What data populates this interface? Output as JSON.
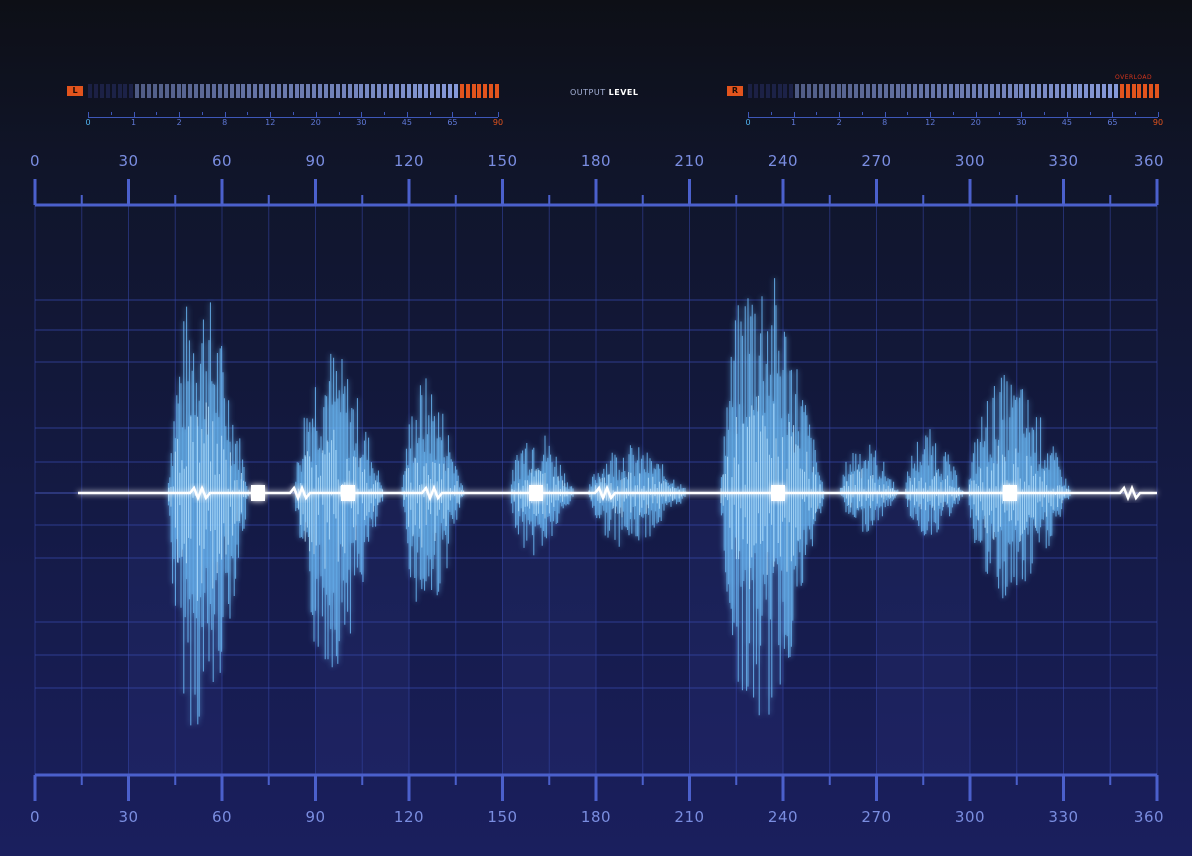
{
  "header": {
    "output_label_prefix": "OUTPUT",
    "output_label_strong": "LEVEL",
    "overload_label": "OVERLOAD"
  },
  "left_meter": {
    "channel": "L",
    "scale": [
      "0",
      "1",
      "2",
      "8",
      "12",
      "20",
      "30",
      "45",
      "65",
      "90"
    ]
  },
  "right_meter": {
    "channel": "R",
    "scale": [
      "0",
      "1",
      "2",
      "8",
      "12",
      "20",
      "30",
      "45",
      "65",
      "90"
    ]
  },
  "axis": {
    "labels": [
      "0",
      "30",
      "60",
      "90",
      "120",
      "150",
      "180",
      "210",
      "240",
      "270",
      "300",
      "330",
      "360"
    ]
  },
  "colors": {
    "background": "#0d0f16",
    "meter_on": "#8fa3e6",
    "meter_off": "#2b3370",
    "meter_peak": "#e2541d",
    "grid": "#3647a8",
    "wave": "#6fc1ff",
    "wave_core": "#ffffff"
  }
}
